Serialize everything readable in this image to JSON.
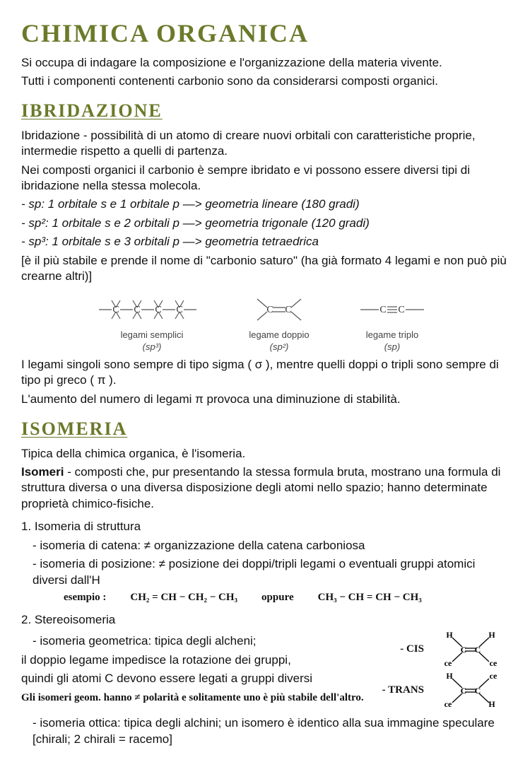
{
  "title": "CHIMICA ORGANICA",
  "intro1": "Si occupa di indagare la composizione e l'organizzazione della materia vivente.",
  "intro2": "Tutti i componenti contenenti carbonio sono da considerarsi composti organici.",
  "h_ibrid": "IBRIDAZIONE",
  "ibrid_def": "Ibridazione - possibilità di un atomo di creare nuovi orbitali con caratteristiche proprie, intermedie rispetto a quelli di partenza.",
  "ibrid_p2": "Nei composti organici il carbonio è sempre ibridato e vi possono essere diversi tipi di ibridazione nella stessa molecola.",
  "sp1": "- sp: 1 orbitale s e 1 orbitale p —> geometria lineare (180 gradi)",
  "sp2": "- sp²: 1 orbitale s e 2 orbitali p —> geometria trigonale (120 gradi)",
  "sp3": "- sp³: 1 orbitale s e 3 orbitali p —> geometria tetraedrica",
  "sp_note": "[è il più stabile e prende il nome di \"carbonio saturo\" (ha già formato 4 legami e non può più crearne altri)]",
  "dia": {
    "single_label1": "legami semplici",
    "single_label2": "(sp³)",
    "double_label1": "legame doppio",
    "double_label2": "(sp²)",
    "triple_label1": "legame triplo",
    "triple_label2": "(sp)",
    "stroke": "#555555",
    "text_color": "#444444"
  },
  "legami_p1": "I legami singoli sono sempre di tipo sigma ( σ ), mentre quelli doppi o tripli sono sempre di tipo pi greco ( π ).",
  "legami_p2": "L'aumento del numero di legami π provoca una diminuzione di stabilità.",
  "h_isom": "ISOMERIA",
  "isom_p1": "Tipica della chimica organica, è l'isomeria.",
  "isom_def": "Isomeri - composti che, pur presentando la stessa formula bruta, mostrano una formula di struttura diversa o una diversa disposizione degli atomi nello spazio; hanno determinate proprietà chimico-fisiche.",
  "list1_head": "1. Isomeria di struttura",
  "list1_a": "- isomeria di catena: ≠ organizzazione della catena carboniosa",
  "list1_b": "- isomeria di posizione: ≠ posizione dei doppi/tripli legami o eventuali gruppi atomici diversi dall'H",
  "hand_ex_label": "esempio :",
  "hand_ex_f1": "CH₂ = CH − CH₂ − CH₃",
  "hand_ex_or": "oppure",
  "hand_ex_f2": "CH₃ − CH = CH − CH₃",
  "list2_head": "2. Stereoisomeria",
  "list2_a": "- isomeria geometrica: tipica degli alcheni;",
  "list2_a2": "il doppio legame impedisce la rotazione dei gruppi,",
  "list2_a3": "quindi gli atomi C devono essere legati a gruppi diversi",
  "cis_label": "- CIS",
  "trans_label": "- TRANS",
  "hand_note": "Gli isomeri geom. hanno ≠ polarità e solitamente uno è più stabile dell'altro.",
  "list2_c": "- isomeria ottica: tipica degli alchini; un isomero è identico alla sua immagine speculare [chirali; 2 chirali = racemo]",
  "colors": {
    "olive": "#6b7a2a",
    "text": "#111111",
    "diagram_stroke": "#555555"
  }
}
